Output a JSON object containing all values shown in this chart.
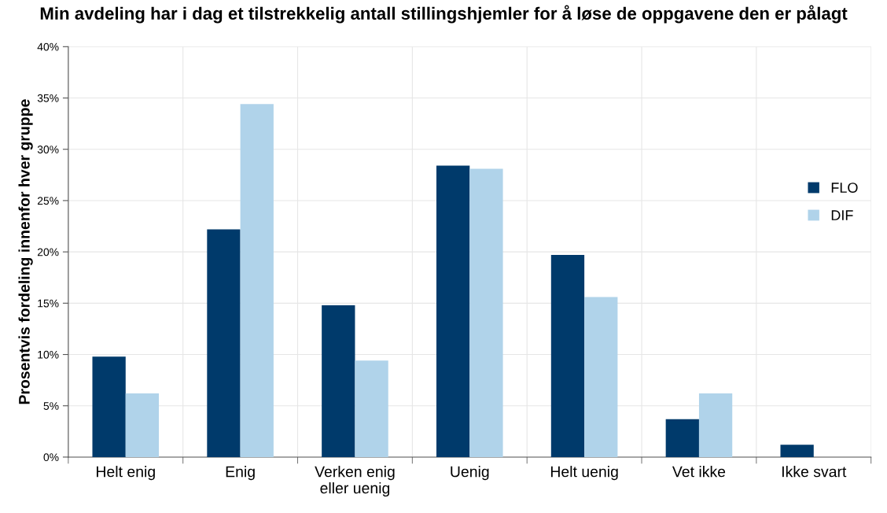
{
  "chart_data": {
    "type": "bar",
    "title": "Min avdeling har i dag et tilstrekkelig antall stillingshjemler for å løse de oppgavene den er pålagt",
    "ylabel": "Prosentvis fordeling innenfor hver gruppe",
    "categories": [
      "Helt enig",
      "Enig",
      "Verken enig\neller uenig",
      "Uenig",
      "Helt uenig",
      "Vet ikke",
      "Ikke svart"
    ],
    "series": [
      {
        "name": "FLO",
        "color": "#003a6b",
        "values": [
          9.8,
          22.2,
          14.8,
          28.4,
          19.7,
          3.7,
          1.2
        ]
      },
      {
        "name": "DIF",
        "color": "#b0d3ea",
        "values": [
          6.2,
          34.4,
          9.4,
          28.1,
          15.6,
          6.2,
          0
        ]
      }
    ],
    "ylim": [
      0,
      40
    ],
    "yticks": [
      {
        "value": 0,
        "label": "0%"
      },
      {
        "value": 5,
        "label": "5%"
      },
      {
        "value": 10,
        "label": "10%"
      },
      {
        "value": 15,
        "label": "15%"
      },
      {
        "value": 20,
        "label": "20%"
      },
      {
        "value": 25,
        "label": "25%"
      },
      {
        "value": 30,
        "label": "30%"
      },
      {
        "value": 35,
        "label": "35%"
      },
      {
        "value": 40,
        "label": "40%"
      }
    ],
    "grid": true,
    "legend": "right"
  }
}
